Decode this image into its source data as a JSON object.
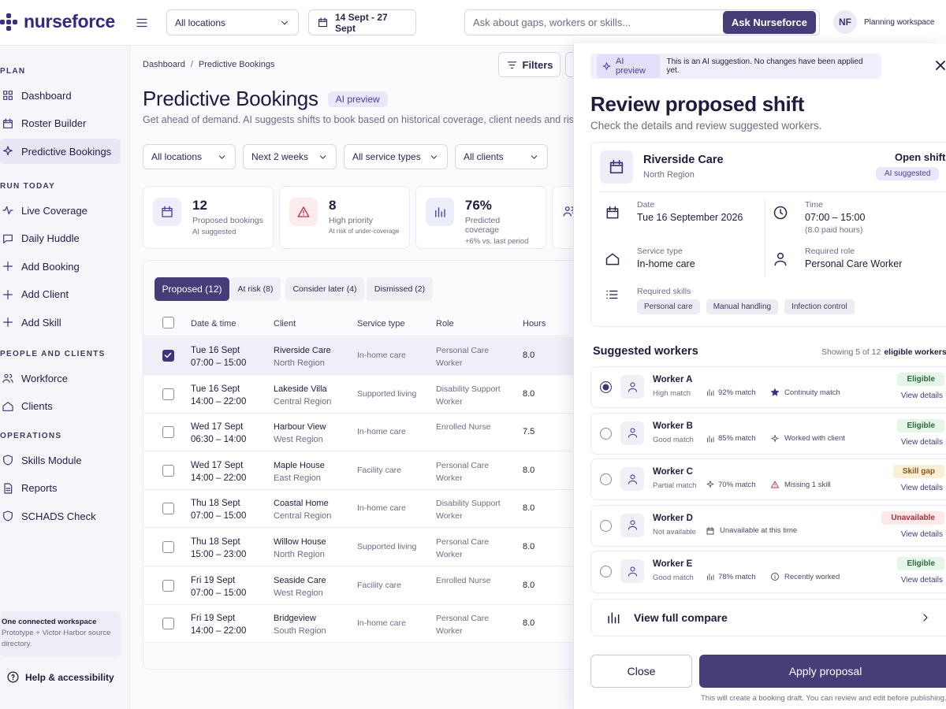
{
  "header": {
    "logo": "nurseforce",
    "location": "All locations",
    "date_range": "14 Sept - 27 Sept",
    "search_placeholder": "Ask about gaps, workers or skills...",
    "ask_button": "Ask Nurseforce",
    "avatar": "NF",
    "workspace": "Planning workspace"
  },
  "sidebar": {
    "sections": [
      {
        "title": "PLAN",
        "items": [
          "Dashboard",
          "Roster Builder",
          "Predictive Bookings"
        ]
      },
      {
        "title": "RUN TODAY",
        "items": [
          "Live Coverage",
          "Daily Huddle",
          "Add Booking",
          "Add Client",
          "Add Skill"
        ]
      },
      {
        "title": "PEOPLE AND CLIENTS",
        "items": [
          "Workforce",
          "Clients"
        ]
      },
      {
        "title": "OPERATIONS",
        "items": [
          "Skills Module",
          "Reports",
          "SCHADS Check"
        ]
      }
    ],
    "workspace_title": "One connected workspace",
    "workspace_text": "Prototype + Victor Harbor source directory.",
    "help": "Help & accessibility"
  },
  "main": {
    "breadcrumb": [
      "Dashboard",
      "Predictive Bookings"
    ],
    "breadcrumb_separator": "/",
    "filters_button": "Filters",
    "title": "Predictive Bookings",
    "badge": "AI preview",
    "subtitle": "Get ahead of demand. AI suggests shifts to book based on historical coverage, client needs and risk.",
    "filters": [
      "All locations",
      "Next 2 weeks",
      "All service types",
      "All clients"
    ],
    "stats": [
      {
        "value": "12",
        "label": "Proposed bookings",
        "note": "AI suggested"
      },
      {
        "value": "8",
        "label": "High priority",
        "note": "At risk of under-coverage"
      },
      {
        "value": "76%",
        "label": "Predicted coverage",
        "note": "+6% vs. last period"
      }
    ],
    "tabs": [
      "Proposed (12)",
      "At risk (8)",
      "Consider later (4)",
      "Dismissed (2)"
    ],
    "table": {
      "columns": [
        "Date & time",
        "Client",
        "Service type",
        "Role",
        "Hours"
      ],
      "rows": [
        [
          "Tue 16 Sept",
          "07:00 – 15:00",
          "Riverside Care",
          "North Region",
          "In-home care",
          "Personal Care Worker",
          "8.0"
        ],
        [
          "Tue 16 Sept",
          "14:00 – 22:00",
          "Lakeside Villa",
          "Central Region",
          "Supported living",
          "Disability Support Worker",
          "8.0"
        ],
        [
          "Wed 17 Sept",
          "06:30 – 14:00",
          "Harbour View",
          "West Region",
          "In-home care",
          "Enrolled Nurse",
          "7.5"
        ],
        [
          "Wed 17 Sept",
          "14:00 – 22:00",
          "Maple House",
          "East Region",
          "Facility care",
          "Personal Care Worker",
          "8.0"
        ],
        [
          "Thu 18 Sept",
          "07:00 – 15:00",
          "Coastal Home",
          "Central Region",
          "In-home care",
          "Disability Support Worker",
          "8.0"
        ],
        [
          "Thu 18 Sept",
          "15:00 – 23:00",
          "Willow House",
          "North Region",
          "Supported living",
          "Personal Care Worker",
          "8.0"
        ],
        [
          "Fri 19 Sept",
          "07:00 – 15:00",
          "Seaside Care",
          "West Region",
          "Facility care",
          "Enrolled Nurse",
          "8.0"
        ],
        [
          "Fri 19 Sept",
          "14:00 – 22:00",
          "Bridgeview",
          "South Region",
          "In-home care",
          "Personal Care Worker",
          "8.0"
        ]
      ]
    }
  },
  "panel": {
    "badge": "AI preview",
    "notice": "This is an AI suggestion. No changes have been applied yet.",
    "title": "Review proposed shift",
    "subtitle": "Check the details and review suggested workers.",
    "client": "Riverside Care",
    "region": "North Region",
    "status": "Open shift",
    "status_badge": "AI suggested",
    "date_label": "Date",
    "date": "Tue 16 September 2026",
    "time_label": "Time",
    "time": "07:00 – 15:00",
    "time_note": "(8.0 paid hours)",
    "service_label": "Service type",
    "service": "In-home care",
    "role_label": "Required role",
    "role": "Personal Care Worker",
    "skills_label": "Required skills",
    "skills": [
      "Personal care",
      "Manual handling",
      "Infection control"
    ],
    "workers_title": "Suggested workers",
    "showing": "Showing 5 of 12",
    "showing_suffix": "eligible workers",
    "workers": [
      {
        "name": "Worker A",
        "level": "High match",
        "score": "92% match",
        "reason": "Continuity match",
        "status": "Eligible",
        "link": "View details"
      },
      {
        "name": "Worker B",
        "level": "Good match",
        "score": "85% match",
        "reason": "Worked with client",
        "status": "Eligible",
        "link": "View details"
      },
      {
        "name": "Worker C",
        "level": "Partial match",
        "score": "70% match",
        "reason": "Missing 1 skill",
        "status": "Skill gap",
        "link": "View details"
      },
      {
        "name": "Worker D",
        "level": "Not available",
        "reason": "Unavailable at this time",
        "status": "Unavailable",
        "link": "View details"
      },
      {
        "name": "Worker E",
        "level": "Good match",
        "score": "78% match",
        "reason": "Recently worked",
        "status": "Eligible",
        "link": "View details"
      }
    ],
    "compare": "View full compare",
    "close": "Close",
    "apply": "Apply proposal",
    "footnote": "This will create a booking draft. You can review and edit before publishing."
  }
}
